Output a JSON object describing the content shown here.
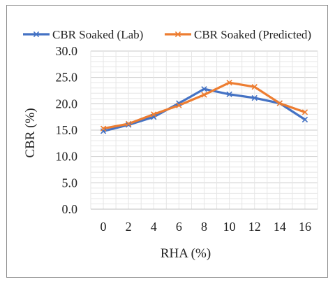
{
  "chart_data": {
    "type": "line",
    "title": "",
    "xlabel": "RHA (%)",
    "ylabel": "CBR (%)",
    "x": [
      0,
      2,
      4,
      6,
      8,
      10,
      12,
      14,
      16
    ],
    "x_tick_labels": [
      "0",
      "2",
      "4",
      "6",
      "8",
      "10",
      "12",
      "14",
      "16"
    ],
    "ylim": [
      0,
      30
    ],
    "y_tick_labels": [
      "0.0",
      "5.0",
      "10.0",
      "15.0",
      "20.0",
      "25.0",
      "30.0"
    ],
    "grid": true,
    "legend_position": "top",
    "series": [
      {
        "name": "CBR Soaked (Lab)",
        "color": "#4472C4",
        "marker": "x-mark",
        "values": [
          14.8,
          16.0,
          17.5,
          20.1,
          22.8,
          21.8,
          21.1,
          20.1,
          17.0
        ]
      },
      {
        "name": "CBR Soaked (Predicted)",
        "color": "#ED7D31",
        "marker": "x-mark",
        "values": [
          15.3,
          16.2,
          18.0,
          19.7,
          21.7,
          24.0,
          23.2,
          20.1,
          18.4
        ]
      }
    ]
  }
}
